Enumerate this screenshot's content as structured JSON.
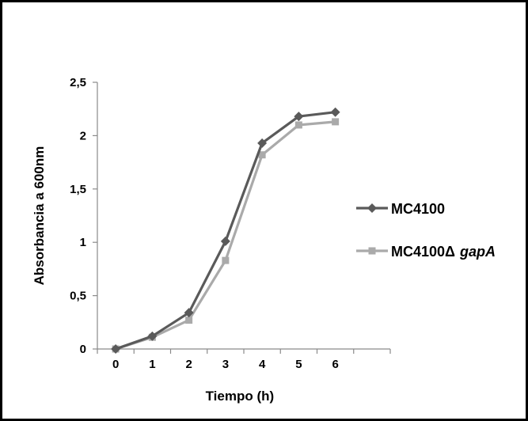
{
  "chart_data": {
    "type": "line",
    "title": "",
    "xlabel": "Tiempo (h)",
    "ylabel": "Absorbancia  a 600nm",
    "x": [
      0,
      1,
      2,
      3,
      4,
      5,
      6
    ],
    "x_ticks": [
      "0",
      "1",
      "2",
      "3",
      "4",
      "5",
      "6"
    ],
    "xlim": [
      -0.5,
      7.5
    ],
    "y_ticks": [
      "0",
      "0,5",
      "1",
      "1,5",
      "2",
      "2,5"
    ],
    "ylim": [
      0,
      2.5
    ],
    "grid": false,
    "legend_position": "right",
    "series": [
      {
        "name": "MC4100",
        "marker": "diamond",
        "color": "#5a5a5a",
        "values": [
          0.0,
          0.12,
          0.34,
          1.01,
          1.93,
          2.18,
          2.22
        ]
      },
      {
        "name": "MC4100Δ",
        "name_suffix": "gapA",
        "marker": "square",
        "color": "#aaaaaa",
        "values": [
          0.0,
          0.11,
          0.27,
          0.83,
          1.82,
          2.1,
          2.13
        ]
      }
    ]
  }
}
